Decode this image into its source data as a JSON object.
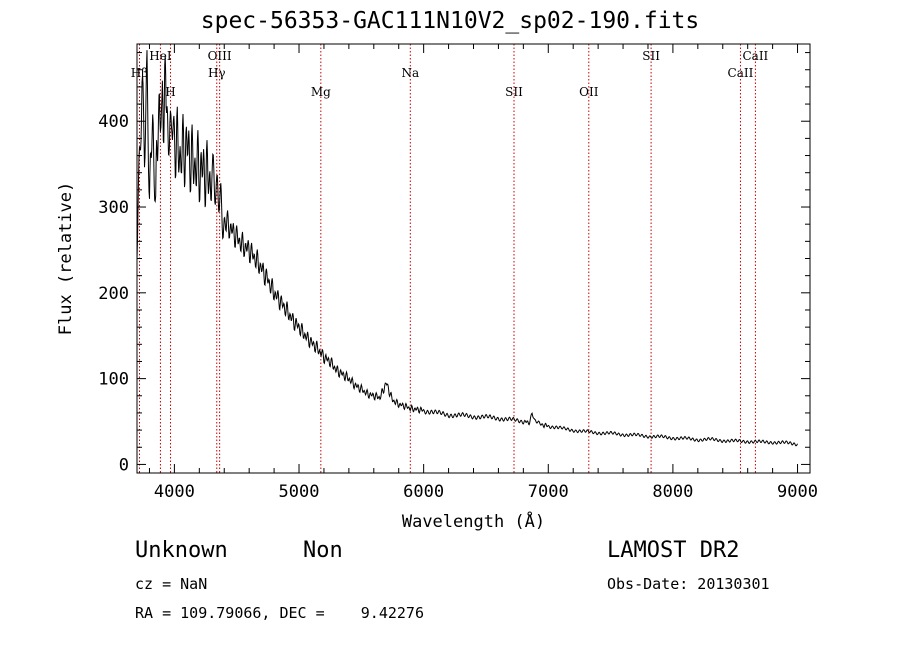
{
  "title": "spec-56353-GAC111N10V2_sp02-190.fits",
  "footer": {
    "classification": "Unknown",
    "subclass": "Non",
    "cz": "cz = NaN",
    "radec": "RA = 109.79066, DEC =    9.42276",
    "survey": "LAMOST DR2",
    "obs_date": "Obs-Date: 20130301"
  },
  "chart_data": {
    "type": "line",
    "title": "spec-56353-GAC111N10V2_sp02-190.fits",
    "xlabel": "Wavelength (Å)",
    "ylabel": "Flux (relative)",
    "xlim": [
      3700,
      9100
    ],
    "ylim": [
      -10,
      490
    ],
    "xticks": [
      4000,
      5000,
      6000,
      7000,
      8000,
      9000
    ],
    "yticks": [
      0,
      100,
      200,
      300,
      400
    ],
    "line_color": "#000000",
    "marker_color": "#cc0000",
    "spectral_lines": [
      {
        "name": "Hβ",
        "x": 3720,
        "row": 2
      },
      {
        "name": "HeI",
        "x": 3888,
        "row": 1
      },
      {
        "name": "H",
        "x": 3969,
        "row": 3
      },
      {
        "name": "OIII",
        "x": 4363,
        "row": 1
      },
      {
        "name": "Hγ",
        "x": 4340,
        "row": 2
      },
      {
        "name": "Mg",
        "x": 5175,
        "row": 3
      },
      {
        "name": "Na",
        "x": 5893,
        "row": 2
      },
      {
        "name": "SII",
        "x": 6725,
        "row": 3
      },
      {
        "name": "OII",
        "x": 7325,
        "row": 3
      },
      {
        "name": "SII",
        "x": 7825,
        "row": 1
      },
      {
        "name": "CaII",
        "x": 8542,
        "row": 2
      },
      {
        "name": "CaII",
        "x": 8662,
        "row": 1
      }
    ],
    "series": [
      {
        "x": [
          3700,
          3740,
          3760,
          3780,
          3800,
          3830,
          3850,
          3880,
          3900,
          3930,
          3960,
          3980,
          4000,
          4050,
          4100,
          4150,
          4200,
          4250,
          4300,
          4340,
          4360,
          4400,
          4450,
          4500,
          4550,
          4600,
          4650,
          4700,
          4750,
          4800,
          4850,
          4900,
          4950,
          5000,
          5050,
          5100,
          5150,
          5200,
          5250,
          5300,
          5350,
          5400,
          5450,
          5500,
          5550,
          5600,
          5650,
          5700,
          5750,
          5800,
          5850,
          5900,
          5950,
          6000,
          6100,
          6200,
          6300,
          6400,
          6500,
          6600,
          6700,
          6800,
          6850,
          6870,
          6890,
          6950,
          7000,
          7100,
          7200,
          7300,
          7400,
          7500,
          7600,
          7700,
          7800,
          7900,
          8000,
          8100,
          8200,
          8300,
          8400,
          8500,
          8600,
          8700,
          8800,
          8900,
          9000
        ],
        "y": [
          250,
          420,
          360,
          450,
          330,
          400,
          320,
          430,
          390,
          450,
          350,
          420,
          380,
          360,
          370,
          350,
          345,
          340,
          330,
          300,
          310,
          285,
          275,
          265,
          255,
          250,
          240,
          228,
          215,
          200,
          190,
          180,
          168,
          160,
          150,
          142,
          135,
          125,
          120,
          110,
          105,
          100,
          92,
          88,
          82,
          80,
          78,
          95,
          75,
          70,
          68,
          65,
          64,
          63,
          60,
          58,
          57,
          56,
          55,
          54,
          52,
          50,
          49,
          60,
          50,
          46,
          45,
          42,
          40,
          38,
          37,
          36,
          35,
          34,
          33,
          32,
          31,
          30,
          29,
          29,
          28,
          27,
          27,
          26,
          26,
          25,
          24
        ]
      }
    ]
  }
}
